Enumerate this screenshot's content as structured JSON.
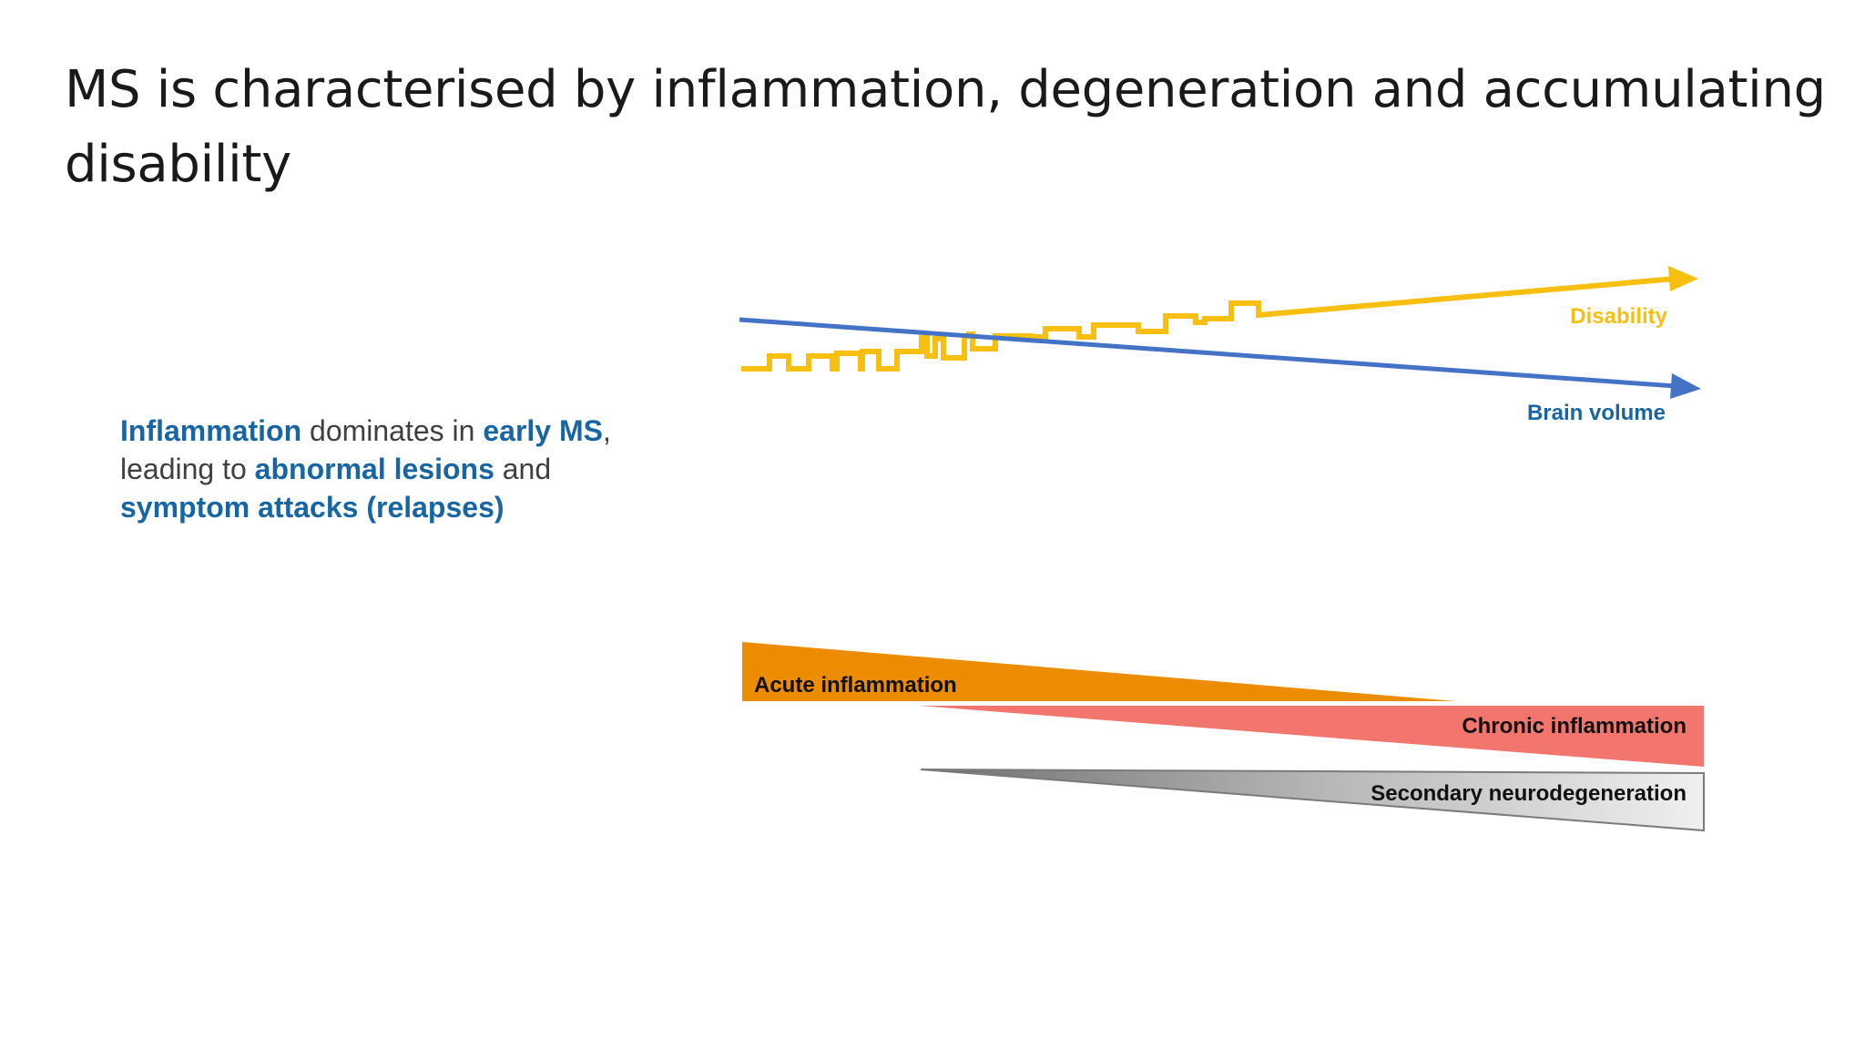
{
  "slide": {
    "title": "MS is characterised by inflammation, degeneration and accumulating disability"
  },
  "summary": {
    "part1_highlight": "Inflammation",
    "part2": " dominates in ",
    "part3_highlight": "early MS",
    "part4": ",",
    "part5": "leading to ",
    "part6_highlight": "abnormal lesions",
    "part7": " and",
    "part8_highlight": "symptom attacks (relapses)"
  },
  "diagram": {
    "trend_lines": {
      "disability_label": "Disability",
      "brain_volume_label": "Brain volume"
    },
    "processes": {
      "acute_label": "Acute inflammation",
      "chronic_label": "Chronic inflammation",
      "neurodegeneration_label": "Secondary neurodegeneration"
    }
  },
  "colors": {
    "title_text": "#1a1a1a",
    "body_text": "#3f3f3f",
    "highlight_blue": "#1766a3",
    "disability_yellow": "#f7bf10",
    "brain_volume_blue": "#4472c4",
    "acute_orange": "#ec8c00",
    "chronic_salmon": "#f2766e",
    "neuro_gray_dark": "#6f6f6f",
    "neuro_gray_light": "#efefef"
  }
}
